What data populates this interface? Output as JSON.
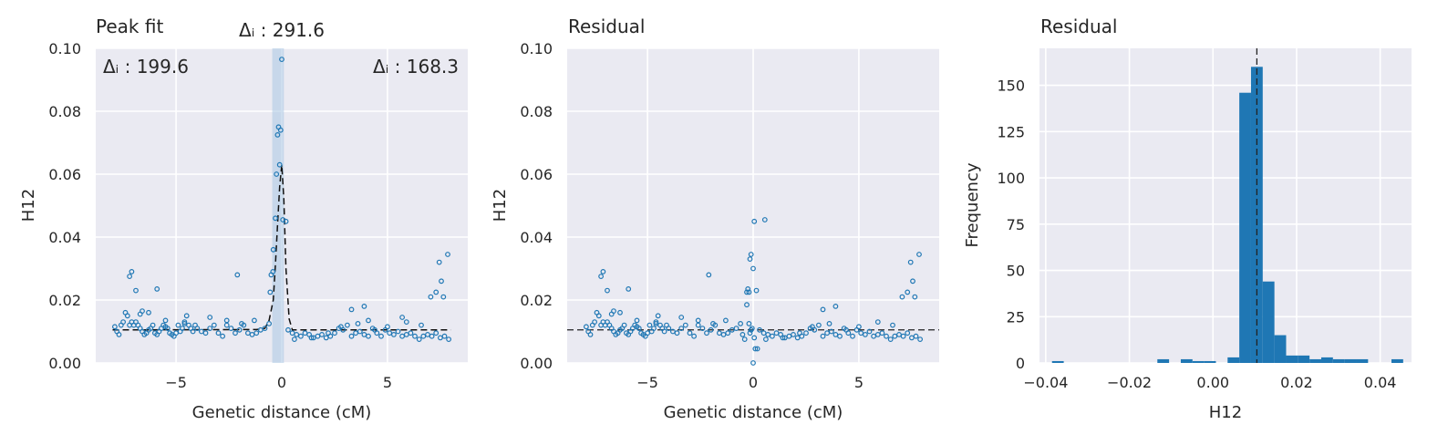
{
  "chart_data": [
    {
      "type": "scatter",
      "title": "Peak fit",
      "xlabel": "Genetic distance (cM)",
      "ylabel": "H12",
      "xlim": [
        -8.8,
        8.8
      ],
      "ylim": [
        0.0,
        0.1
      ],
      "xticks": [
        -5,
        0,
        5
      ],
      "yticks": [
        0.0,
        0.02,
        0.04,
        0.06,
        0.08,
        0.1
      ],
      "xtick_labels": [
        "−5",
        "0",
        "5"
      ],
      "ytick_labels": [
        "0.00",
        "0.02",
        "0.04",
        "0.06",
        "0.08",
        "0.10"
      ],
      "grid": true,
      "shaded_band": [
        -0.45,
        0.1
      ],
      "annotations": [
        {
          "label": "Δᵢ : 291.6",
          "position": "top-center"
        },
        {
          "label": "Δᵢ : 199.6",
          "position": "top-left"
        },
        {
          "label": "Δᵢ : 168.3",
          "position": "top-right"
        }
      ],
      "fit_line": {
        "style": "dashed",
        "x": [
          -8,
          -1.2,
          -0.8,
          -0.6,
          -0.4,
          -0.3,
          -0.2,
          -0.1,
          0.0,
          0.1,
          0.2,
          0.35,
          0.5,
          8
        ],
        "y": [
          0.0105,
          0.0106,
          0.011,
          0.0135,
          0.02,
          0.031,
          0.044,
          0.056,
          0.063,
          0.052,
          0.03,
          0.014,
          0.0105,
          0.0105
        ]
      },
      "points": {
        "x": [
          -7.9,
          -7.8,
          -7.7,
          -7.6,
          -7.5,
          -7.4,
          -7.3,
          -7.2,
          -7.1,
          -7.0,
          -6.9,
          -6.8,
          -6.7,
          -6.6,
          -6.5,
          -6.4,
          -6.3,
          -6.2,
          -6.1,
          -6.0,
          -5.9,
          -5.8,
          -5.7,
          -5.6,
          -5.5,
          -5.4,
          -5.3,
          -5.2,
          -5.1,
          -5.0,
          -4.9,
          -4.8,
          -4.7,
          -4.6,
          -4.5,
          -4.4,
          -4.3,
          -4.2,
          -4.1,
          -4.0,
          -3.8,
          -3.6,
          -3.4,
          -3.2,
          -3.0,
          -2.8,
          -2.6,
          -2.4,
          -2.2,
          -2.0,
          -1.8,
          -1.6,
          -1.4,
          -1.2,
          -1.0,
          -0.8,
          -0.6,
          -0.5,
          -0.4,
          -0.3,
          -0.25,
          -0.2,
          -0.15,
          -0.1,
          -0.05,
          0.0,
          0.05,
          0.2,
          0.3,
          0.5,
          0.7,
          0.9,
          1.1,
          1.3,
          1.5,
          1.7,
          1.9,
          2.1,
          2.3,
          2.5,
          2.7,
          2.9,
          3.1,
          3.3,
          3.5,
          3.7,
          3.9,
          4.1,
          4.3,
          4.5,
          4.7,
          4.9,
          5.1,
          5.3,
          5.5,
          5.7,
          5.9,
          6.1,
          6.3,
          6.5,
          6.7,
          6.9,
          7.1,
          7.3,
          7.5,
          7.7,
          7.9,
          -7.2,
          -7.1,
          -6.9,
          -6.6,
          -6.3,
          -5.9,
          -2.1,
          -0.55,
          -0.42,
          3.3,
          3.9,
          4.1,
          5.7,
          7.05,
          7.3,
          7.45,
          7.55,
          7.65,
          7.85,
          -6.7,
          -5.5,
          -4.6,
          -3.4,
          -2.6,
          -1.9,
          -1.3,
          0.6,
          1.4,
          2.2,
          2.8,
          3.6,
          4.4,
          5.0,
          5.9,
          6.6
        ],
        "y": [
          0.0115,
          0.01,
          0.009,
          0.012,
          0.013,
          0.016,
          0.015,
          0.012,
          0.013,
          0.012,
          0.013,
          0.012,
          0.011,
          0.01,
          0.009,
          0.0095,
          0.0105,
          0.011,
          0.012,
          0.0095,
          0.009,
          0.01,
          0.011,
          0.012,
          0.0115,
          0.011,
          0.0095,
          0.009,
          0.0085,
          0.0095,
          0.012,
          0.01,
          0.011,
          0.013,
          0.015,
          0.012,
          0.011,
          0.01,
          0.012,
          0.011,
          0.01,
          0.0095,
          0.011,
          0.012,
          0.0095,
          0.0085,
          0.012,
          0.011,
          0.0095,
          0.0105,
          0.012,
          0.0095,
          0.009,
          0.0095,
          0.0105,
          0.011,
          0.0125,
          0.028,
          0.036,
          0.046,
          0.06,
          0.0725,
          0.075,
          0.063,
          0.074,
          0.0965,
          0.0455,
          0.045,
          0.0105,
          0.0095,
          0.009,
          0.0085,
          0.0095,
          0.009,
          0.008,
          0.0085,
          0.009,
          0.008,
          0.0085,
          0.0095,
          0.011,
          0.0105,
          0.012,
          0.0085,
          0.0095,
          0.01,
          0.009,
          0.0085,
          0.011,
          0.0095,
          0.0085,
          0.0105,
          0.0095,
          0.009,
          0.01,
          0.0085,
          0.009,
          0.0095,
          0.0085,
          0.0075,
          0.0085,
          0.009,
          0.0085,
          0.0095,
          0.008,
          0.0085,
          0.0075,
          0.0275,
          0.029,
          0.023,
          0.0165,
          0.016,
          0.0235,
          0.028,
          0.0225,
          0.029,
          0.017,
          0.018,
          0.0135,
          0.0145,
          0.021,
          0.0225,
          0.032,
          0.026,
          0.021,
          0.0345,
          0.0155,
          0.0135,
          0.0125,
          0.0145,
          0.0135,
          0.0125,
          0.0135,
          0.0075,
          0.008,
          0.0095,
          0.0115,
          0.0125,
          0.0105,
          0.0115,
          0.013,
          0.012
        ]
      }
    },
    {
      "type": "scatter",
      "title": "Residual",
      "xlabel": "Genetic distance (cM)",
      "ylabel": "H12",
      "xlim": [
        -8.8,
        8.8
      ],
      "ylim": [
        0.0,
        0.1
      ],
      "xticks": [
        -5,
        0,
        5
      ],
      "yticks": [
        0.0,
        0.02,
        0.04,
        0.06,
        0.08,
        0.1
      ],
      "xtick_labels": [
        "−5",
        "0",
        "5"
      ],
      "ytick_labels": [
        "0.00",
        "0.02",
        "0.04",
        "0.06",
        "0.08",
        "0.10"
      ],
      "grid": true,
      "hline": 0.0105,
      "points": {
        "x": [
          -7.9,
          -7.8,
          -7.7,
          -7.6,
          -7.5,
          -7.4,
          -7.3,
          -7.2,
          -7.1,
          -7.0,
          -6.9,
          -6.8,
          -6.7,
          -6.6,
          -6.5,
          -6.4,
          -6.3,
          -6.2,
          -6.1,
          -6.0,
          -5.9,
          -5.8,
          -5.7,
          -5.6,
          -5.5,
          -5.4,
          -5.3,
          -5.2,
          -5.1,
          -5.0,
          -4.9,
          -4.8,
          -4.7,
          -4.6,
          -4.5,
          -4.4,
          -4.3,
          -4.2,
          -4.1,
          -4.0,
          -3.8,
          -3.6,
          -3.4,
          -3.2,
          -3.0,
          -2.8,
          -2.6,
          -2.4,
          -2.2,
          -2.0,
          -1.8,
          -1.6,
          -1.4,
          -1.2,
          -1.0,
          -0.8,
          -0.6,
          -0.5,
          -0.4,
          -0.3,
          -0.25,
          -0.2,
          -0.15,
          -0.1,
          -0.05,
          0.0,
          0.05,
          0.1,
          0.2,
          0.3,
          0.5,
          0.7,
          0.9,
          1.1,
          1.3,
          1.5,
          1.7,
          1.9,
          2.1,
          2.3,
          2.5,
          2.7,
          2.9,
          3.1,
          3.3,
          3.5,
          3.7,
          3.9,
          4.1,
          4.3,
          4.5,
          4.7,
          4.9,
          5.1,
          5.3,
          5.5,
          5.7,
          5.9,
          6.1,
          6.3,
          6.5,
          6.7,
          6.9,
          7.1,
          7.3,
          7.5,
          7.7,
          7.9,
          -7.2,
          -7.1,
          -6.9,
          -6.6,
          -6.3,
          -5.9,
          -2.1,
          -0.3,
          -0.2,
          -0.15,
          -0.1,
          0.0,
          0.05,
          0.15,
          0.55,
          3.3,
          3.9,
          7.05,
          7.3,
          7.45,
          7.55,
          7.65,
          7.85,
          -6.7,
          -5.5,
          -4.6,
          -3.4,
          -2.6,
          -1.9,
          -1.3,
          0.6,
          1.4,
          2.2,
          2.8,
          3.6,
          4.4,
          5.0,
          5.9,
          6.6
        ],
        "y": [
          0.0115,
          0.01,
          0.009,
          0.012,
          0.013,
          0.016,
          0.015,
          0.012,
          0.013,
          0.012,
          0.013,
          0.012,
          0.011,
          0.01,
          0.009,
          0.0095,
          0.0105,
          0.011,
          0.012,
          0.0095,
          0.009,
          0.01,
          0.011,
          0.012,
          0.0115,
          0.011,
          0.0095,
          0.009,
          0.0085,
          0.0095,
          0.012,
          0.01,
          0.011,
          0.013,
          0.015,
          0.012,
          0.011,
          0.01,
          0.012,
          0.011,
          0.01,
          0.0095,
          0.011,
          0.012,
          0.0095,
          0.0085,
          0.012,
          0.011,
          0.0095,
          0.0105,
          0.012,
          0.0095,
          0.009,
          0.0095,
          0.0105,
          0.011,
          0.0125,
          0.009,
          0.0075,
          0.0185,
          0.0235,
          0.0125,
          0.0095,
          0.0105,
          0.011,
          0.0,
          0.008,
          0.0045,
          0.0045,
          0.0105,
          0.0095,
          0.009,
          0.0085,
          0.0095,
          0.009,
          0.008,
          0.0085,
          0.009,
          0.008,
          0.0085,
          0.0095,
          0.011,
          0.0105,
          0.012,
          0.0085,
          0.0095,
          0.01,
          0.009,
          0.0085,
          0.011,
          0.0095,
          0.0085,
          0.0105,
          0.0095,
          0.009,
          0.01,
          0.0085,
          0.009,
          0.0095,
          0.0085,
          0.0075,
          0.0085,
          0.009,
          0.0085,
          0.0095,
          0.008,
          0.0085,
          0.0075,
          0.0275,
          0.029,
          0.023,
          0.0165,
          0.016,
          0.0235,
          0.028,
          0.0225,
          0.0225,
          0.033,
          0.0345,
          0.03,
          0.045,
          0.023,
          0.0455,
          0.017,
          0.018,
          0.021,
          0.0225,
          0.032,
          0.026,
          0.021,
          0.0345,
          0.0155,
          0.0135,
          0.0125,
          0.0145,
          0.0135,
          0.0125,
          0.0135,
          0.0075,
          0.008,
          0.0095,
          0.0115,
          0.0125,
          0.0105,
          0.0115,
          0.013,
          0.012
        ]
      }
    },
    {
      "type": "bar",
      "subtype": "histogram",
      "title": "Residual",
      "xlabel": "H12",
      "ylabel": "Frequency",
      "xlim": [
        -0.0415,
        0.0475
      ],
      "ylim": [
        0,
        170
      ],
      "xticks": [
        -0.04,
        -0.02,
        0.0,
        0.02,
        0.04
      ],
      "yticks": [
        0,
        25,
        50,
        75,
        100,
        125,
        150
      ],
      "xtick_labels": [
        "−0.04",
        "−0.02",
        "0.00",
        "0.02",
        "0.04"
      ],
      "ytick_labels": [
        "0",
        "25",
        "50",
        "75",
        "100",
        "125",
        "150"
      ],
      "grid": true,
      "vline": 0.0105,
      "bin_width": 0.0028,
      "bins": [
        {
          "x0": -0.0385,
          "count": 1
        },
        {
          "x0": -0.0133,
          "count": 2
        },
        {
          "x0": -0.0077,
          "count": 2
        },
        {
          "x0": -0.0049,
          "count": 1
        },
        {
          "x0": -0.0021,
          "count": 1
        },
        {
          "x0": 0.0035,
          "count": 3
        },
        {
          "x0": 0.0063,
          "count": 146
        },
        {
          "x0": 0.0091,
          "count": 160
        },
        {
          "x0": 0.0119,
          "count": 44
        },
        {
          "x0": 0.0147,
          "count": 15
        },
        {
          "x0": 0.0175,
          "count": 4
        },
        {
          "x0": 0.0203,
          "count": 4
        },
        {
          "x0": 0.0231,
          "count": 2
        },
        {
          "x0": 0.0259,
          "count": 3
        },
        {
          "x0": 0.0287,
          "count": 2
        },
        {
          "x0": 0.0315,
          "count": 2
        },
        {
          "x0": 0.0343,
          "count": 2
        },
        {
          "x0": 0.0427,
          "count": 2
        }
      ]
    }
  ]
}
